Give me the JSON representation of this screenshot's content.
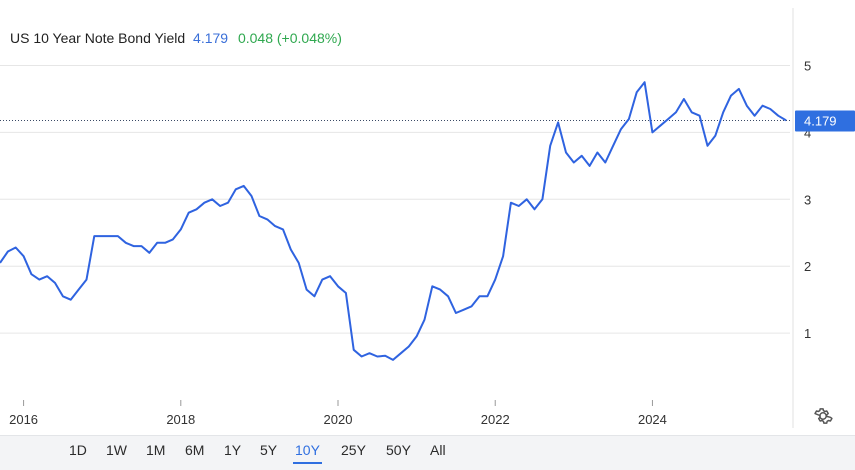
{
  "header": {
    "name": "US 10 Year Note Bond Yield",
    "price": "4.179",
    "change": "0.048 (+0.048%)"
  },
  "colors": {
    "line": "#2f63e0",
    "price_change": "#2fa84f",
    "price_label_bg": "#2f6fe0",
    "grid": "#e6e6e6"
  },
  "icons": {
    "settings": "gear-icon"
  },
  "toolbar": {
    "timeframes": [
      "1D",
      "1W",
      "1M",
      "6M",
      "1Y",
      "5Y",
      "10Y",
      "25Y",
      "50Y",
      "All"
    ],
    "active": "10Y"
  },
  "chart_data": {
    "type": "line",
    "series": [
      {
        "x": [
          2015.7,
          2015.8,
          2015.9,
          2016.0,
          2016.1,
          2016.2,
          2016.3,
          2016.4,
          2016.5,
          2016.6,
          2016.7,
          2016.8,
          2016.9,
          2017.0,
          2017.1,
          2017.2,
          2017.3,
          2017.4,
          2017.5,
          2017.6,
          2017.7,
          2017.8,
          2017.9,
          2018.0,
          2018.1,
          2018.2,
          2018.3,
          2018.4,
          2018.5,
          2018.6,
          2018.7,
          2018.8,
          2018.9,
          2019.0,
          2019.1,
          2019.2,
          2019.3,
          2019.4,
          2019.5,
          2019.6,
          2019.7,
          2019.8,
          2019.9,
          2020.0,
          2020.1,
          2020.2,
          2020.3,
          2020.4,
          2020.5,
          2020.6,
          2020.7,
          2020.8,
          2020.9,
          2021.0,
          2021.1,
          2021.2,
          2021.3,
          2021.4,
          2021.5,
          2021.6,
          2021.7,
          2021.8,
          2021.9,
          2022.0,
          2022.1,
          2022.2,
          2022.3,
          2022.4,
          2022.5,
          2022.6,
          2022.7,
          2022.8,
          2022.9,
          2023.0,
          2023.1,
          2023.2,
          2023.3,
          2023.4,
          2023.5,
          2023.6,
          2023.7,
          2023.8,
          2023.9,
          2024.0,
          2024.1,
          2024.2,
          2024.3,
          2024.4,
          2024.5,
          2024.6,
          2024.7,
          2024.8,
          2024.9,
          2025.0,
          2025.1,
          2025.2,
          2025.3,
          2025.4,
          2025.5,
          2025.6,
          2025.7
        ],
        "y": [
          2.05,
          2.22,
          2.28,
          2.15,
          1.88,
          1.8,
          1.85,
          1.75,
          1.55,
          1.5,
          1.65,
          1.8,
          2.45,
          2.45,
          2.45,
          2.45,
          2.35,
          2.3,
          2.3,
          2.2,
          2.35,
          2.35,
          2.4,
          2.55,
          2.8,
          2.85,
          2.95,
          3.0,
          2.9,
          2.95,
          3.15,
          3.2,
          3.05,
          2.75,
          2.7,
          2.6,
          2.55,
          2.25,
          2.05,
          1.65,
          1.55,
          1.8,
          1.85,
          1.7,
          1.6,
          0.75,
          0.65,
          0.7,
          0.65,
          0.66,
          0.6,
          0.7,
          0.8,
          0.95,
          1.2,
          1.7,
          1.65,
          1.55,
          1.3,
          1.35,
          1.4,
          1.55,
          1.55,
          1.8,
          2.15,
          2.95,
          2.9,
          3.0,
          2.85,
          3.0,
          3.8,
          4.15,
          3.7,
          3.55,
          3.65,
          3.5,
          3.7,
          3.55,
          3.8,
          4.05,
          4.2,
          4.6,
          4.75,
          4.0,
          4.1,
          4.2,
          4.3,
          4.5,
          4.3,
          4.25,
          3.8,
          3.95,
          4.3,
          4.55,
          4.65,
          4.4,
          4.25,
          4.4,
          4.35,
          4.25,
          4.18
        ]
      }
    ],
    "xticks": [
      "2016",
      "2018",
      "2020",
      "2022",
      "2024"
    ],
    "yticks": [
      1,
      2,
      3,
      4,
      5
    ],
    "xlim": [
      2015.7,
      2025.75
    ],
    "ylim": [
      0,
      5.8
    ],
    "last_value": "4.179",
    "grid": true
  }
}
